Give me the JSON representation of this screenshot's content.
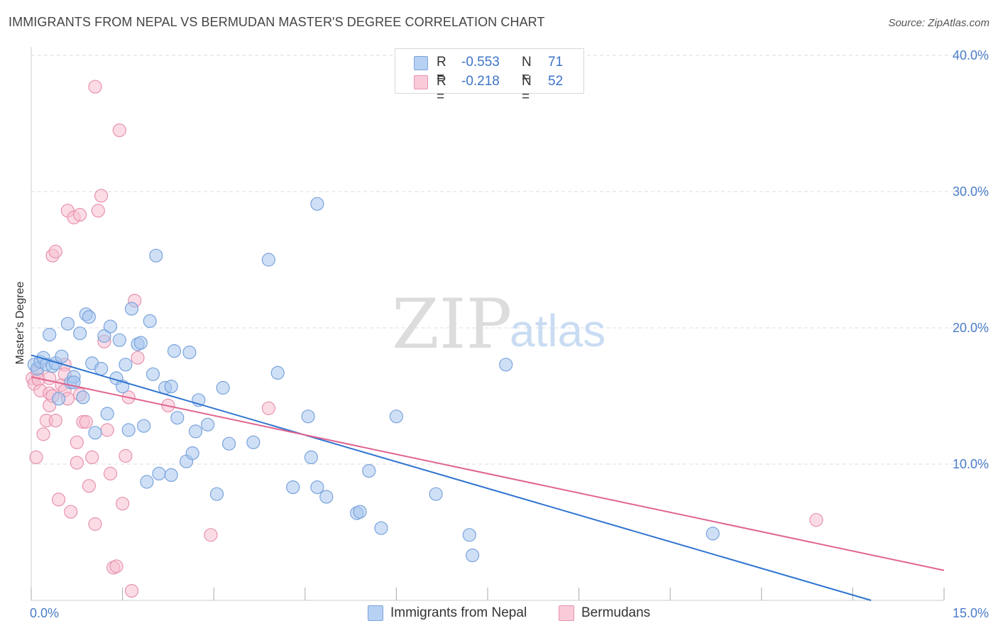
{
  "title": "IMMIGRANTS FROM NEPAL VS BERMUDAN MASTER'S DEGREE CORRELATION CHART",
  "source": "Source: ZipAtlas.com",
  "watermark": {
    "zip": "ZIP",
    "atlas": "atlas"
  },
  "legend": {
    "r_label": "R =",
    "n_label": "N =",
    "series": [
      {
        "name": "Immigrants from Nepal",
        "r": "-0.553",
        "n": "71",
        "fill": "#aac8f0",
        "stroke": "#6e9ad8"
      },
      {
        "name": "Bermudans",
        "r": "-0.218",
        "n": "52",
        "fill": "#f8c3d3",
        "stroke": "#e68aa8"
      }
    ]
  },
  "colors": {
    "blue_fill": "#a8c6ef",
    "blue_stroke": "#7aa3dc",
    "blue_line": "#2f74d0",
    "pink_fill": "#f7bfd0",
    "pink_stroke": "#e792ae",
    "pink_line": "#e0648f",
    "grid": "#dddddd",
    "axis_text": "#4a7cc7"
  },
  "chart_data": {
    "type": "scatter",
    "title": "IMMIGRANTS FROM NEPAL VS BERMUDAN MASTER'S DEGREE CORRELATION CHART",
    "xlabel": "",
    "ylabel": "Master's Degree",
    "xlim": [
      0,
      15
    ],
    "ylim": [
      0,
      40
    ],
    "x_tick_labels": [
      "0.0%",
      "15.0%"
    ],
    "y_ticks": [
      10,
      20,
      30,
      40
    ],
    "y_tick_labels": [
      "10.0%",
      "20.0%",
      "30.0%",
      "40.0%"
    ],
    "grid": true,
    "series": [
      {
        "name": "Immigrants from Nepal",
        "color": "#a8c6ef",
        "points": [
          [
            0.05,
            17.3
          ],
          [
            0.1,
            17.0
          ],
          [
            0.15,
            17.5
          ],
          [
            0.2,
            17.8
          ],
          [
            0.25,
            17.3
          ],
          [
            0.3,
            19.5
          ],
          [
            0.35,
            17.2
          ],
          [
            0.4,
            17.4
          ],
          [
            0.45,
            14.8
          ],
          [
            0.5,
            17.9
          ],
          [
            0.6,
            20.3
          ],
          [
            0.65,
            16.0
          ],
          [
            0.7,
            16.4
          ],
          [
            0.8,
            19.6
          ],
          [
            0.85,
            14.9
          ],
          [
            0.9,
            21.0
          ],
          [
            0.95,
            20.8
          ],
          [
            1.0,
            17.4
          ],
          [
            1.05,
            12.3
          ],
          [
            1.15,
            17.0
          ],
          [
            1.2,
            19.4
          ],
          [
            1.25,
            13.7
          ],
          [
            1.3,
            20.1
          ],
          [
            1.4,
            16.3
          ],
          [
            1.45,
            19.1
          ],
          [
            1.5,
            15.7
          ],
          [
            1.55,
            17.3
          ],
          [
            1.6,
            12.5
          ],
          [
            1.65,
            21.4
          ],
          [
            1.75,
            18.8
          ],
          [
            1.8,
            18.9
          ],
          [
            1.85,
            12.8
          ],
          [
            1.9,
            8.7
          ],
          [
            1.95,
            20.5
          ],
          [
            2.0,
            16.6
          ],
          [
            2.05,
            25.3
          ],
          [
            2.1,
            9.3
          ],
          [
            2.2,
            15.6
          ],
          [
            2.3,
            15.7
          ],
          [
            2.3,
            9.2
          ],
          [
            2.35,
            18.3
          ],
          [
            2.4,
            13.4
          ],
          [
            2.55,
            10.2
          ],
          [
            2.6,
            18.2
          ],
          [
            2.65,
            10.8
          ],
          [
            2.7,
            12.4
          ],
          [
            2.75,
            14.7
          ],
          [
            2.9,
            12.9
          ],
          [
            3.05,
            7.8
          ],
          [
            3.15,
            15.6
          ],
          [
            3.25,
            11.5
          ],
          [
            3.65,
            11.6
          ],
          [
            3.9,
            25.0
          ],
          [
            4.05,
            16.7
          ],
          [
            4.3,
            8.3
          ],
          [
            4.55,
            13.5
          ],
          [
            4.6,
            10.5
          ],
          [
            4.7,
            8.3
          ],
          [
            4.85,
            7.6
          ],
          [
            4.7,
            29.1
          ],
          [
            5.35,
            6.4
          ],
          [
            5.4,
            6.5
          ],
          [
            5.55,
            9.5
          ],
          [
            5.75,
            5.3
          ],
          [
            6.0,
            13.5
          ],
          [
            6.65,
            7.8
          ],
          [
            7.2,
            4.8
          ],
          [
            7.25,
            3.3
          ],
          [
            7.8,
            17.3
          ],
          [
            11.2,
            4.9
          ],
          [
            0.7,
            16.0
          ]
        ]
      },
      {
        "name": "Bermudans",
        "color": "#f7bfd0",
        "points": [
          [
            0.02,
            16.3
          ],
          [
            0.05,
            15.9
          ],
          [
            0.08,
            10.5
          ],
          [
            0.1,
            16.8
          ],
          [
            0.12,
            16.2
          ],
          [
            0.15,
            15.4
          ],
          [
            0.2,
            12.2
          ],
          [
            0.25,
            13.2
          ],
          [
            0.3,
            16.3
          ],
          [
            0.3,
            14.3
          ],
          [
            0.3,
            15.2
          ],
          [
            0.35,
            15.0
          ],
          [
            0.35,
            25.3
          ],
          [
            0.4,
            25.6
          ],
          [
            0.4,
            13.2
          ],
          [
            0.45,
            7.4
          ],
          [
            0.5,
            15.8
          ],
          [
            0.55,
            17.3
          ],
          [
            0.55,
            15.4
          ],
          [
            0.6,
            28.6
          ],
          [
            0.6,
            14.8
          ],
          [
            0.65,
            6.5
          ],
          [
            0.7,
            28.1
          ],
          [
            0.75,
            11.6
          ],
          [
            0.75,
            10.1
          ],
          [
            0.8,
            15.1
          ],
          [
            0.8,
            28.3
          ],
          [
            0.85,
            13.1
          ],
          [
            0.9,
            13.1
          ],
          [
            0.95,
            8.4
          ],
          [
            1.0,
            10.5
          ],
          [
            1.05,
            37.7
          ],
          [
            1.05,
            5.6
          ],
          [
            1.1,
            28.6
          ],
          [
            1.15,
            29.7
          ],
          [
            1.2,
            19.0
          ],
          [
            1.25,
            12.5
          ],
          [
            1.3,
            9.3
          ],
          [
            1.35,
            2.4
          ],
          [
            1.4,
            2.5
          ],
          [
            1.45,
            34.5
          ],
          [
            1.5,
            7.1
          ],
          [
            1.55,
            10.6
          ],
          [
            1.6,
            14.9
          ],
          [
            1.65,
            0.7
          ],
          [
            1.7,
            22.0
          ],
          [
            1.75,
            17.8
          ],
          [
            2.25,
            14.3
          ],
          [
            2.95,
            4.8
          ],
          [
            3.9,
            14.1
          ],
          [
            12.9,
            5.9
          ],
          [
            0.55,
            16.6
          ]
        ]
      }
    ],
    "trend_lines": [
      {
        "series": "Immigrants from Nepal",
        "x": [
          0,
          13.8
        ],
        "y": [
          18.0,
          0.0
        ]
      },
      {
        "series": "Bermudans",
        "x": [
          0,
          15
        ],
        "y": [
          16.4,
          2.2
        ]
      }
    ]
  }
}
